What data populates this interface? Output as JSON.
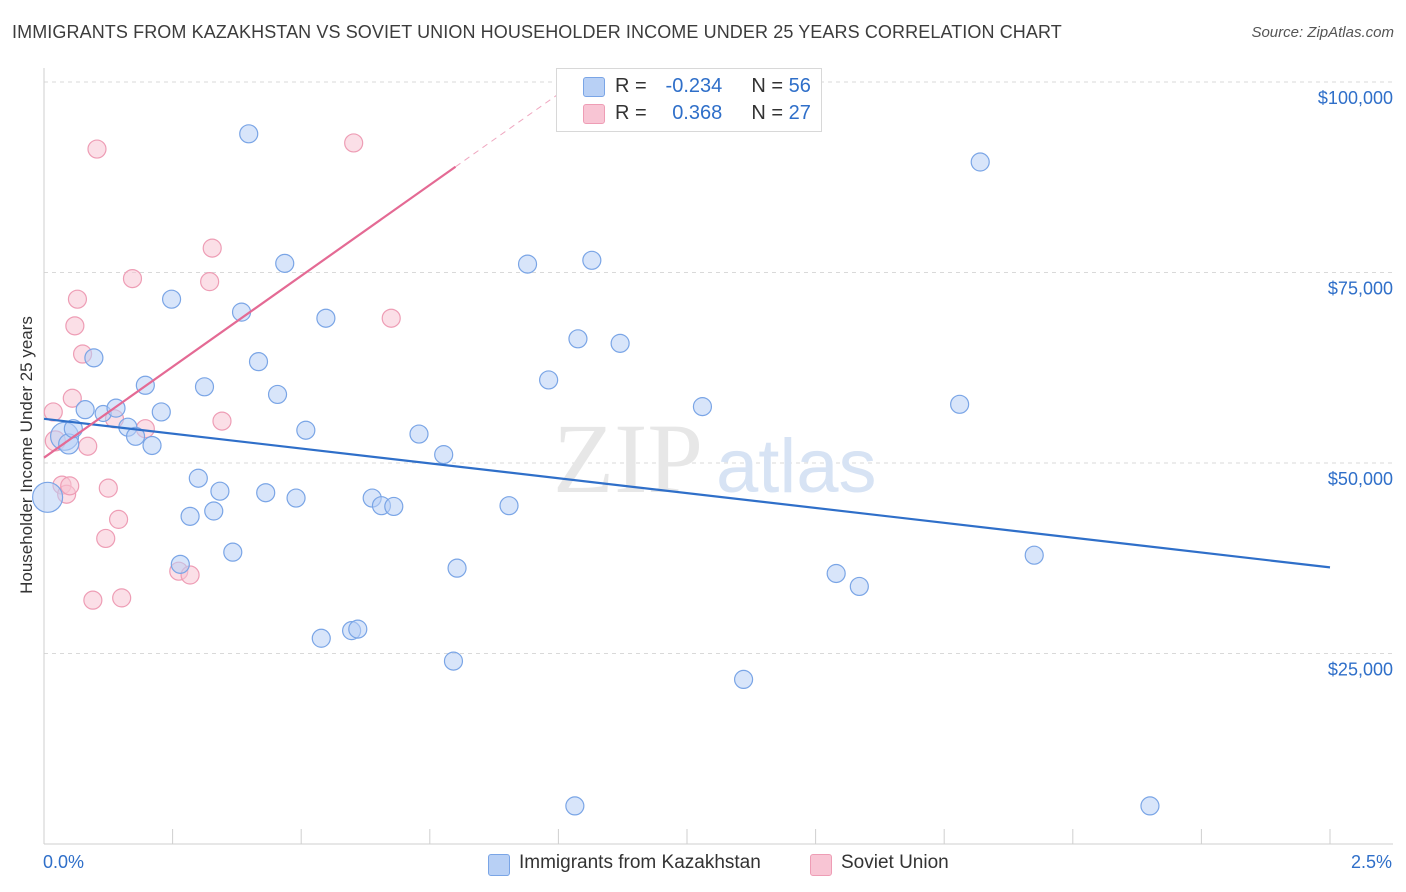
{
  "header": {
    "title": "IMMIGRANTS FROM KAZAKHSTAN VS SOVIET UNION HOUSEHOLDER INCOME UNDER 25 YEARS CORRELATION CHART",
    "source": "Source: ZipAtlas.com"
  },
  "watermark": {
    "zip": "ZIP",
    "atlas": "atlas"
  },
  "legend": {
    "r_label": "R =",
    "n_label": "N =",
    "rows": [
      {
        "r": "-0.234",
        "n": "56"
      },
      {
        "r": "0.368",
        "n": "27"
      }
    ]
  },
  "colors": {
    "blue_fill": "#b8d0f5",
    "blue_stroke": "#7aa5e6",
    "blue_line": "#2f6fc9",
    "pink_fill": "#f8c5d4",
    "pink_stroke": "#ee9db5",
    "pink_line": "#e46a94",
    "grid": "#d9d9d9",
    "axis_text": "#2f6fc9"
  },
  "chart_data": {
    "type": "scatter",
    "title": "IMMIGRANTS FROM KAZAKHSTAN VS SOVIET UNION HOUSEHOLDER INCOME UNDER 25 YEARS CORRELATION CHART",
    "xlabel": "",
    "ylabel": "Householder Income Under 25 years",
    "xlim": [
      0,
      2.5
    ],
    "ylim": [
      0,
      100000
    ],
    "x_tick_labels": [
      "0.0%",
      "2.5%"
    ],
    "y_ticks": [
      {
        "value": 25000,
        "label": "$25,000"
      },
      {
        "value": 50000,
        "label": "$50,000"
      },
      {
        "value": 75000,
        "label": "$75,000"
      },
      {
        "value": 100000,
        "label": "$100,000"
      }
    ],
    "series": [
      {
        "name": "Immigrants from Kazakhstan",
        "color": "#b8d0f5",
        "r": -0.234,
        "n": 56,
        "trend": {
          "x0": 0.0,
          "y0": 55800,
          "x1": 2.5,
          "y1": 36300,
          "dash_from": 2.5
        },
        "points": [
          [
            0.007,
            45500,
            15
          ],
          [
            0.04,
            53500,
            14
          ],
          [
            0.048,
            52500,
            10
          ],
          [
            0.057,
            54500,
            9
          ],
          [
            0.08,
            57000,
            9
          ],
          [
            0.097,
            63800,
            9
          ],
          [
            0.115,
            56500,
            8
          ],
          [
            0.14,
            57200,
            9
          ],
          [
            0.163,
            54700,
            9
          ],
          [
            0.178,
            53500,
            9
          ],
          [
            0.197,
            60200,
            9
          ],
          [
            0.21,
            52300,
            9
          ],
          [
            0.228,
            56700,
            9
          ],
          [
            0.248,
            71500,
            9
          ],
          [
            0.265,
            36700,
            9
          ],
          [
            0.284,
            43000,
            9
          ],
          [
            0.3,
            48000,
            9
          ],
          [
            0.312,
            60000,
            9
          ],
          [
            0.33,
            43700,
            9
          ],
          [
            0.342,
            46300,
            9
          ],
          [
            0.367,
            38300,
            9
          ],
          [
            0.384,
            69800,
            9
          ],
          [
            0.398,
            93200,
            9
          ],
          [
            0.417,
            63300,
            9
          ],
          [
            0.431,
            46100,
            9
          ],
          [
            0.454,
            59000,
            9
          ],
          [
            0.468,
            76200,
            9
          ],
          [
            0.49,
            45400,
            9
          ],
          [
            0.509,
            54300,
            9
          ],
          [
            0.539,
            27000,
            9
          ],
          [
            0.548,
            69000,
            9
          ],
          [
            0.598,
            28000,
            9
          ],
          [
            0.61,
            28200,
            9
          ],
          [
            0.638,
            45400,
            9
          ],
          [
            0.656,
            44400,
            9
          ],
          [
            0.68,
            44300,
            9
          ],
          [
            0.729,
            53800,
            9
          ],
          [
            0.777,
            51100,
            9
          ],
          [
            0.796,
            24000,
            9
          ],
          [
            0.803,
            36200,
            9
          ],
          [
            0.904,
            44400,
            9
          ],
          [
            0.94,
            76100,
            9
          ],
          [
            0.981,
            60900,
            9
          ],
          [
            1.032,
            5000,
            9
          ],
          [
            1.038,
            66300,
            9
          ],
          [
            1.065,
            76600,
            9
          ],
          [
            1.12,
            65700,
            9
          ],
          [
            1.28,
            57400,
            9
          ],
          [
            1.36,
            21600,
            9
          ],
          [
            1.54,
            35500,
            9
          ],
          [
            1.585,
            33800,
            9
          ],
          [
            1.78,
            57700,
            9
          ],
          [
            1.82,
            89500,
            9
          ],
          [
            1.925,
            37900,
            9
          ],
          [
            2.15,
            5000,
            9
          ]
        ]
      },
      {
        "name": "Soviet Union",
        "color": "#f8c5d4",
        "r": 0.368,
        "n": 27,
        "trend": {
          "x0": 0.0,
          "y0": 50700,
          "x1": 2.5,
          "y1": 170000,
          "dash_from": 0.8
        },
        "points": [
          [
            0.018,
            56700,
            9
          ],
          [
            0.022,
            52900,
            10
          ],
          [
            0.035,
            47100,
            9
          ],
          [
            0.044,
            45900,
            9
          ],
          [
            0.05,
            47000,
            9
          ],
          [
            0.055,
            58500,
            9
          ],
          [
            0.06,
            68000,
            9
          ],
          [
            0.065,
            71500,
            9
          ],
          [
            0.075,
            64300,
            9
          ],
          [
            0.085,
            52200,
            9
          ],
          [
            0.095,
            32000,
            9
          ],
          [
            0.103,
            91200,
            9
          ],
          [
            0.12,
            40100,
            9
          ],
          [
            0.125,
            46700,
            9
          ],
          [
            0.137,
            55800,
            9
          ],
          [
            0.145,
            42600,
            9
          ],
          [
            0.151,
            32300,
            9
          ],
          [
            0.172,
            74200,
            9
          ],
          [
            0.197,
            54500,
            9
          ],
          [
            0.262,
            35800,
            9
          ],
          [
            0.284,
            35300,
            9
          ],
          [
            0.322,
            73800,
            9
          ],
          [
            0.327,
            78200,
            9
          ],
          [
            0.346,
            55500,
            9
          ],
          [
            0.602,
            92000,
            9
          ],
          [
            0.675,
            69000,
            9
          ]
        ]
      }
    ]
  }
}
